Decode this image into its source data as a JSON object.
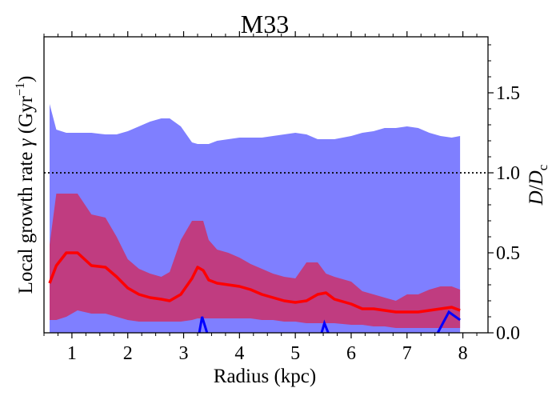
{
  "chart_data": {
    "type": "area",
    "title": "M33",
    "xlabel": "Radius (kpc)",
    "ylabel_left": "Local growth rate γ (Gyr⁻¹)",
    "ylabel_left_parts": {
      "main": "Local growth rate ",
      "gamma": "γ",
      "open": " (Gyr",
      "sup": "−1",
      "close": ")"
    },
    "ylabel_right": "D/D_c",
    "ylabel_right_parts": {
      "D1": "D",
      "slash": "/",
      "D2": "D",
      "sub": "c"
    },
    "xlim": [
      0.5,
      8.45
    ],
    "ylim_right": [
      0,
      1.85
    ],
    "xticks": [
      1,
      2,
      3,
      4,
      5,
      6,
      7,
      8
    ],
    "xtick_labels": [
      "1",
      "2",
      "3",
      "4",
      "5",
      "6",
      "7",
      "8"
    ],
    "yticks_right": [
      0.0,
      0.5,
      1.0,
      1.5
    ],
    "ytick_labels_right": [
      "0.0",
      "0.5",
      "1.0",
      "1.5"
    ],
    "reference_line": {
      "y": 1.0,
      "style": "dotted",
      "color": "#000000"
    },
    "x": [
      0.6,
      0.72,
      0.9,
      1.1,
      1.35,
      1.6,
      1.8,
      2.0,
      2.2,
      2.4,
      2.6,
      2.75,
      2.95,
      3.15,
      3.25,
      3.35,
      3.45,
      3.6,
      3.8,
      4.0,
      4.2,
      4.4,
      4.6,
      4.8,
      5.0,
      5.2,
      5.4,
      5.55,
      5.7,
      6.0,
      6.2,
      6.4,
      6.6,
      6.8,
      7.0,
      7.2,
      7.4,
      7.6,
      7.8,
      7.95
    ],
    "series": [
      {
        "kind": "band",
        "color": "#7f7fff",
        "upper": [
          1.43,
          1.27,
          1.25,
          1.25,
          1.25,
          1.24,
          1.24,
          1.26,
          1.29,
          1.32,
          1.34,
          1.34,
          1.29,
          1.19,
          1.18,
          1.18,
          1.18,
          1.2,
          1.21,
          1.22,
          1.22,
          1.22,
          1.23,
          1.24,
          1.25,
          1.24,
          1.21,
          1.21,
          1.21,
          1.23,
          1.25,
          1.26,
          1.28,
          1.28,
          1.29,
          1.28,
          1.25,
          1.23,
          1.22,
          1.23
        ],
        "lower": [
          0,
          0,
          0,
          0,
          0,
          0,
          0,
          0,
          0,
          0,
          0,
          0,
          0,
          0,
          0,
          0,
          0,
          0,
          0,
          0,
          0,
          0,
          0,
          0,
          0,
          0,
          0,
          0,
          0,
          0,
          0,
          0,
          0,
          0,
          0,
          0,
          0,
          0,
          0,
          0
        ]
      },
      {
        "kind": "band",
        "color": "#c03c80",
        "upper": [
          0.55,
          0.87,
          0.87,
          0.87,
          0.74,
          0.72,
          0.6,
          0.46,
          0.4,
          0.37,
          0.35,
          0.38,
          0.58,
          0.7,
          0.7,
          0.7,
          0.58,
          0.52,
          0.5,
          0.47,
          0.43,
          0.4,
          0.37,
          0.35,
          0.34,
          0.44,
          0.44,
          0.37,
          0.35,
          0.32,
          0.26,
          0.24,
          0.22,
          0.2,
          0.24,
          0.24,
          0.27,
          0.29,
          0.29,
          0.27
        ],
        "lower": [
          0.08,
          0.08,
          0.1,
          0.14,
          0.12,
          0.12,
          0.1,
          0.08,
          0.07,
          0.07,
          0.07,
          0.07,
          0.07,
          0.08,
          0.09,
          0.09,
          0.09,
          0.09,
          0.09,
          0.09,
          0.09,
          0.08,
          0.08,
          0.07,
          0.07,
          0.06,
          0.06,
          0.06,
          0.06,
          0.05,
          0.05,
          0.04,
          0.04,
          0.03,
          0.03,
          0.03,
          0.03,
          0.03,
          0.03,
          0.03
        ]
      },
      {
        "kind": "line",
        "color": "#ff0000",
        "values": [
          0.31,
          0.42,
          0.5,
          0.5,
          0.42,
          0.41,
          0.35,
          0.28,
          0.24,
          0.22,
          0.21,
          0.2,
          0.24,
          0.34,
          0.41,
          0.39,
          0.33,
          0.31,
          0.3,
          0.29,
          0.27,
          0.24,
          0.22,
          0.2,
          0.19,
          0.2,
          0.24,
          0.25,
          0.21,
          0.18,
          0.15,
          0.15,
          0.14,
          0.13,
          0.13,
          0.13,
          0.14,
          0.15,
          0.16,
          0.14
        ]
      }
    ],
    "markers": [
      {
        "color": "#0000ff",
        "x": [
          3.28,
          3.33,
          3.42
        ],
        "y": [
          0.0,
          0.1,
          0.0
        ]
      },
      {
        "color": "#0000ff",
        "x": [
          5.47,
          5.52,
          5.59
        ],
        "y": [
          0.0,
          0.06,
          0.0
        ]
      },
      {
        "color": "#0000ff",
        "x": [
          7.55,
          7.75,
          7.95
        ],
        "y": [
          0.0,
          0.13,
          0.08
        ]
      }
    ]
  }
}
